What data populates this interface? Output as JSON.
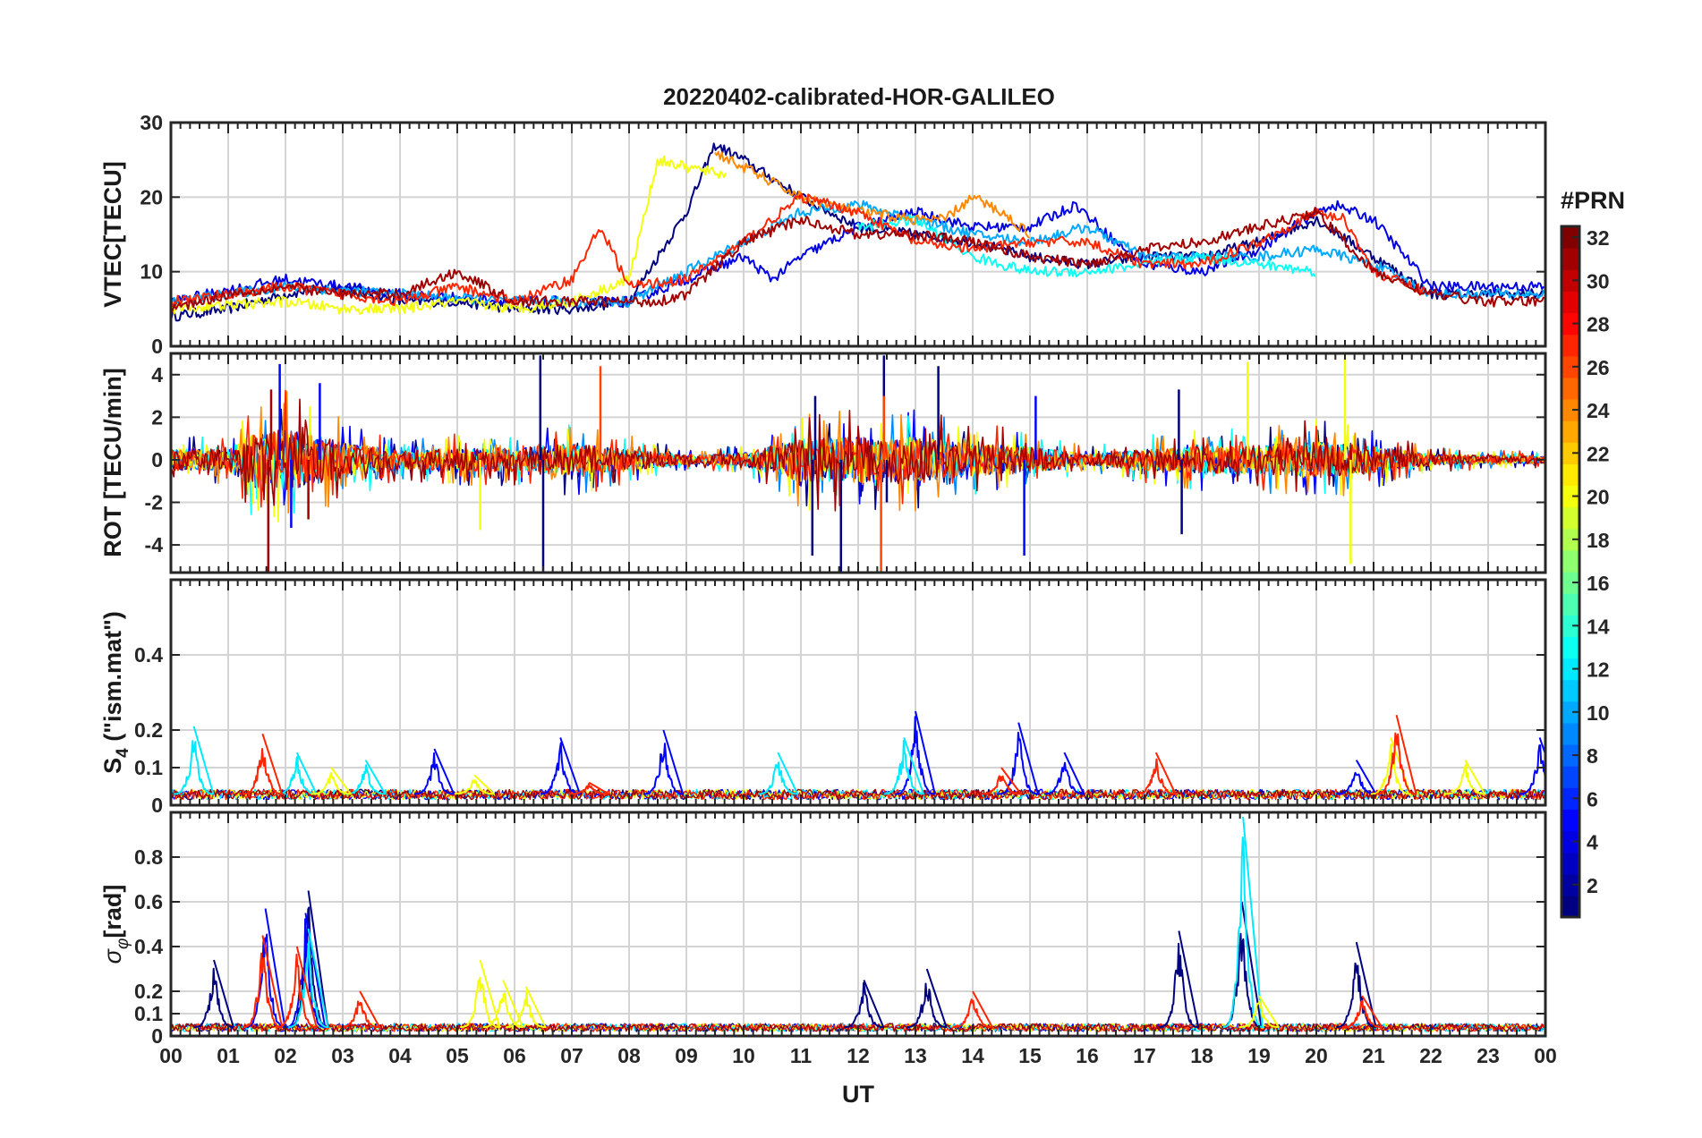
{
  "chart_data": {
    "type": "line",
    "title": "20220402-calibrated-HOR-GALILEO",
    "xlabel": "UT",
    "x_tick_labels": [
      "00",
      "01",
      "02",
      "03",
      "04",
      "05",
      "06",
      "07",
      "08",
      "09",
      "10",
      "11",
      "12",
      "13",
      "14",
      "15",
      "16",
      "17",
      "18",
      "19",
      "20",
      "21",
      "22",
      "23",
      "00"
    ],
    "xlim": [
      0,
      24
    ],
    "grid": true,
    "panels": [
      {
        "ylabel": "VTEC[TECU]",
        "ylim": [
          0,
          30
        ],
        "yticks": [
          0,
          10,
          20,
          30
        ],
        "ytick_labels": [
          "0",
          "10",
          "20",
          "30"
        ],
        "representative_series": [
          {
            "prn": 1,
            "x": [
              0,
              1,
              2,
              3,
              4,
              5,
              6,
              7,
              8,
              9,
              9.5,
              10,
              11,
              12,
              13,
              14,
              15,
              16,
              17,
              18,
              19,
              20,
              21,
              22,
              23,
              24
            ],
            "y": [
              4,
              5,
              7,
              8,
              6,
              6,
              5,
              5,
              6,
              18,
              27,
              25,
              20,
              16,
              15,
              14,
              12,
              11,
              12,
              12,
              14,
              17,
              12,
              7,
              7,
              7
            ]
          },
          {
            "prn": 4,
            "x": [
              0,
              2,
              4,
              6,
              8,
              10,
              10.5,
              11,
              12,
              13,
              14,
              15,
              15.8,
              16.5,
              17,
              18,
              19,
              20,
              20.3,
              21,
              22,
              23,
              24
            ],
            "y": [
              6,
              9,
              7,
              6,
              6,
              12,
              9,
              12,
              16,
              18,
              16,
              16,
              19,
              14,
              11,
              10,
              13,
              18,
              19,
              17,
              8,
              8,
              8
            ]
          },
          {
            "prn": 10,
            "x": [
              0,
              2,
              4,
              6,
              8,
              10,
              11,
              12,
              13,
              14,
              15,
              16,
              17,
              18,
              19,
              20,
              21,
              22,
              24
            ],
            "y": [
              6,
              8,
              7,
              6,
              6,
              14,
              18,
              19,
              17,
              15,
              14,
              16,
              12,
              12,
              12,
              13,
              11,
              7,
              7
            ]
          },
          {
            "prn": 13,
            "x": [
              12,
              13,
              14,
              15,
              16,
              17,
              18,
              19,
              20
            ],
            "y": [
              16,
              17,
              12,
              10,
              10,
              11,
              12,
              11,
              10
            ]
          },
          {
            "prn": 20,
            "x": [
              0,
              2,
              3,
              4,
              5,
              6,
              7,
              8,
              8.5,
              9,
              9.7
            ],
            "y": [
              5,
              6,
              5,
              5,
              6,
              5,
              6,
              9,
              25,
              24,
              23
            ]
          },
          {
            "prn": 24,
            "x": [
              9.5,
              10,
              11,
              12,
              13,
              13.5,
              14,
              14.5,
              15
            ],
            "y": [
              26,
              24,
              20,
              18,
              17,
              17,
              20,
              18,
              15
            ]
          },
          {
            "prn": 27,
            "x": [
              0,
              2,
              4,
              5,
              6,
              7,
              7.5,
              8,
              9,
              10,
              11,
              12,
              13,
              14,
              15,
              16,
              17,
              18,
              19,
              20,
              20.5,
              21,
              22
            ],
            "y": [
              6,
              8,
              6,
              8,
              6,
              9,
              16,
              8,
              9,
              14,
              20,
              18,
              14,
              13,
              14,
              14,
              11,
              11,
              14,
              18,
              17,
              10,
              7
            ]
          },
          {
            "prn": 31,
            "x": [
              0,
              1,
              2,
              3,
              4,
              5,
              6,
              7,
              8.5,
              9,
              10,
              11,
              12,
              13,
              14,
              15,
              16,
              17,
              18,
              19,
              20,
              21,
              22,
              23,
              24
            ],
            "y": [
              5,
              7,
              8,
              7,
              7,
              10,
              6,
              6,
              6,
              7,
              14,
              17,
              15,
              15,
              14,
              12,
              11,
              13,
              14,
              16,
              18,
              10,
              7,
              6,
              6
            ]
          }
        ]
      },
      {
        "ylabel": "ROT [TECU/min]",
        "ylim": [
          -5.3,
          5
        ],
        "yticks": [
          -4,
          -2,
          0,
          2,
          4
        ],
        "ytick_labels": [
          "-4",
          "-2",
          "0",
          "2",
          "4"
        ],
        "representative_series": [
          {
            "prn": 1,
            "x": [
              6.45,
              6.5,
              11.2,
              11.25,
              11.7,
              12.45,
              12.5,
              13.4,
              17.6,
              17.65
            ],
            "y": [
              4.9,
              -5.3,
              -4.5,
              3,
              -5.3,
              4.9,
              -2,
              4.4,
              3.3,
              -3.5
            ]
          },
          {
            "prn": 5,
            "x": [
              1.9,
              2.1,
              2.6,
              14.9,
              15.1
            ],
            "y": [
              4.5,
              -3.2,
              3.6,
              -4.5,
              3
            ]
          },
          {
            "prn": 20,
            "x": [
              5.4,
              18.8,
              20.5,
              20.6
            ],
            "y": [
              -3.3,
              4.6,
              4.9,
              -4.9
            ]
          },
          {
            "prn": 26,
            "x": [
              7.5,
              12.4,
              12.45
            ],
            "y": [
              4.4,
              -5.3,
              3
            ]
          },
          {
            "prn": 31,
            "x": [
              1.7,
              1.75,
              2.4
            ],
            "y": [
              -5.3,
              3.3,
              -2.8
            ]
          }
        ],
        "activity_envelope": {
          "x": [
            0,
            1,
            1.5,
            2,
            3,
            4,
            5,
            6,
            7,
            8,
            9,
            10,
            11,
            12,
            13,
            14,
            15,
            16,
            17,
            18,
            19,
            20,
            21,
            22,
            23,
            24
          ],
          "amp": [
            1.2,
            1.2,
            3.2,
            3.5,
            2,
            1,
            1.3,
            1.3,
            1.8,
            1.2,
            0.5,
            0.7,
            2.5,
            2.5,
            2.5,
            1.8,
            1.5,
            0.6,
            1.2,
            1.5,
            1.6,
            2,
            1.5,
            0.6,
            0.5,
            0.4
          ]
        }
      },
      {
        "ylabel": "S4 (\"ism.mat\")",
        "ylim": [
          0,
          0.6
        ],
        "yticks": [
          0,
          0.1,
          0.2,
          0.4
        ],
        "ytick_labels": [
          "0",
          "0.1",
          "0.2",
          "0.4"
        ],
        "representative_series": [
          {
            "prn": 5,
            "x": [
              4.6,
              6.8,
              8.6,
              13.0,
              14.8,
              15.6,
              20.7,
              23.9
            ],
            "y": [
              0.15,
              0.18,
              0.2,
              0.25,
              0.22,
              0.14,
              0.12,
              0.18
            ]
          },
          {
            "prn": 12,
            "x": [
              0.4,
              2.2,
              3.4,
              10.6,
              12.8
            ],
            "y": [
              0.21,
              0.14,
              0.12,
              0.14,
              0.18
            ]
          },
          {
            "prn": 20,
            "x": [
              2.8,
              5.3,
              21.3,
              22.6
            ],
            "y": [
              0.1,
              0.08,
              0.18,
              0.12
            ]
          },
          {
            "prn": 27,
            "x": [
              1.6,
              7.3,
              14.5,
              17.2,
              21.4
            ],
            "y": [
              0.19,
              0.06,
              0.1,
              0.14,
              0.24
            ]
          }
        ],
        "baseline": 0.03
      },
      {
        "ylabel": "σφ[rad]",
        "ylim": [
          0,
          1.0
        ],
        "yticks": [
          0,
          0.1,
          0.2,
          0.4,
          0.6,
          0.8
        ],
        "ytick_labels": [
          "0",
          "0.1",
          "0.2",
          "0.4",
          "0.6",
          "0.8"
        ],
        "representative_series": [
          {
            "prn": 1,
            "x": [
              0.75,
              2.4,
              12.1,
              13.2,
              17.6,
              18.7,
              20.7
            ],
            "y": [
              0.34,
              0.65,
              0.25,
              0.3,
              0.47,
              0.6,
              0.42
            ]
          },
          {
            "prn": 5,
            "x": [
              1.65,
              2.35
            ],
            "y": [
              0.57,
              0.55
            ]
          },
          {
            "prn": 12,
            "x": [
              2.4,
              18.72
            ],
            "y": [
              0.48,
              0.98
            ]
          },
          {
            "prn": 20,
            "x": [
              5.4,
              5.8,
              6.2,
              19.0
            ],
            "y": [
              0.34,
              0.25,
              0.22,
              0.18
            ]
          },
          {
            "prn": 27,
            "x": [
              1.6,
              2.2,
              3.3,
              14.0,
              20.8
            ],
            "y": [
              0.45,
              0.4,
              0.2,
              0.2,
              0.18
            ]
          }
        ],
        "baseline": 0.04
      }
    ],
    "colorbar": {
      "label": "#PRN",
      "colormap": "jet",
      "range": [
        1,
        32
      ],
      "ticks": [
        2,
        4,
        6,
        8,
        10,
        12,
        14,
        16,
        18,
        20,
        22,
        24,
        26,
        28,
        30,
        32
      ],
      "tick_labels": [
        "2",
        "4",
        "6",
        "8",
        "10",
        "12",
        "14",
        "16",
        "18",
        "20",
        "22",
        "24",
        "26",
        "28",
        "30",
        "32"
      ]
    }
  }
}
